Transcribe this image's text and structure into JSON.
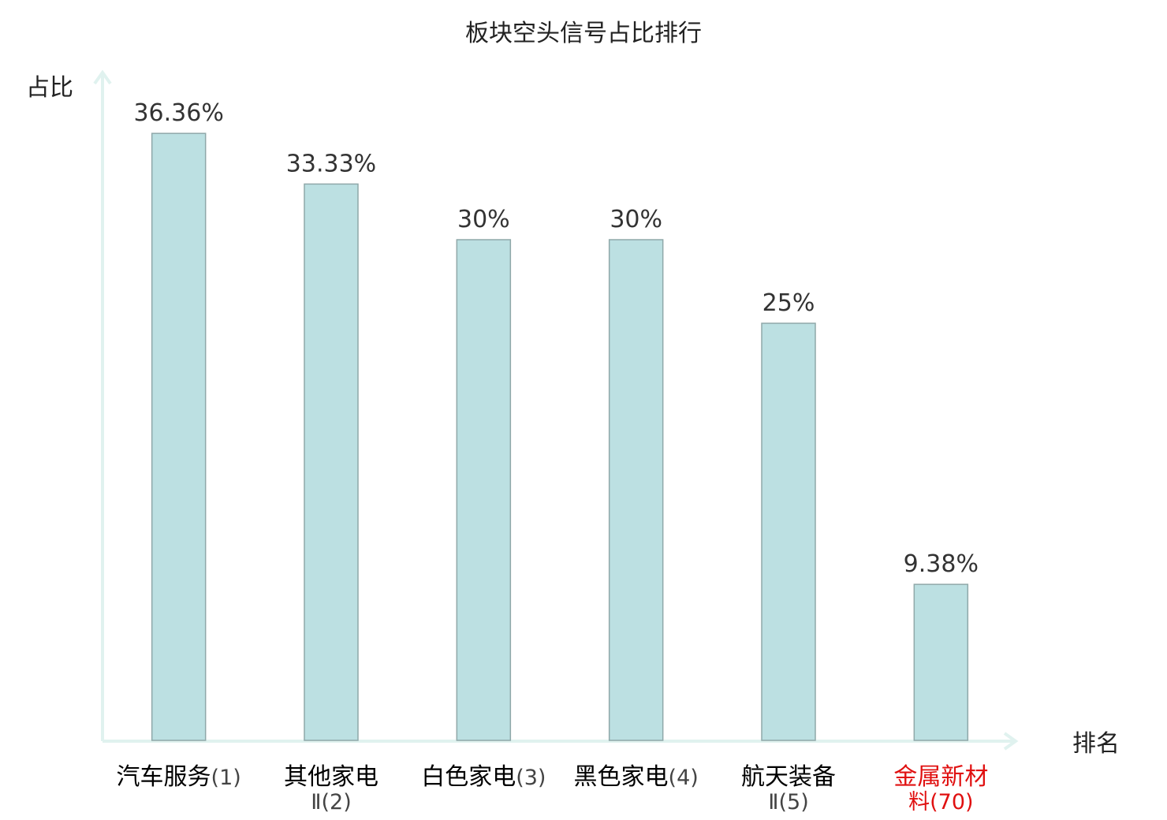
{
  "chart_data": {
    "type": "bar",
    "title": "板块空头信号占比排行",
    "xlabel": "排名",
    "ylabel": "占比",
    "categories": [
      {
        "line1": "汽车服务",
        "rank": "(1)",
        "line2": "",
        "highlight": false
      },
      {
        "line1": "其他家电",
        "rank": "",
        "line2": "Ⅱ(2)",
        "highlight": false
      },
      {
        "line1": "白色家电",
        "rank": "(3)",
        "line2": "",
        "highlight": false
      },
      {
        "line1": "黑色家电",
        "rank": "(4)",
        "line2": "",
        "highlight": false
      },
      {
        "line1": "航天装备",
        "rank": "",
        "line2": "Ⅱ(5)",
        "highlight": false
      },
      {
        "line1": "金属新材",
        "rank": "",
        "line2": "料(70)",
        "highlight": true
      }
    ],
    "values": [
      36.36,
      33.33,
      30,
      30,
      25,
      9.38
    ],
    "value_labels": [
      "36.36%",
      "33.33%",
      "30%",
      "30%",
      "25%",
      "9.38%"
    ],
    "ylim": [
      0,
      40
    ],
    "grid": false,
    "colors": {
      "bar_fill": "#bce0e2",
      "bar_stroke": "#8fa8a9",
      "axis": "#e0f2ef",
      "highlight": "#e01010",
      "text": "#333333"
    }
  }
}
